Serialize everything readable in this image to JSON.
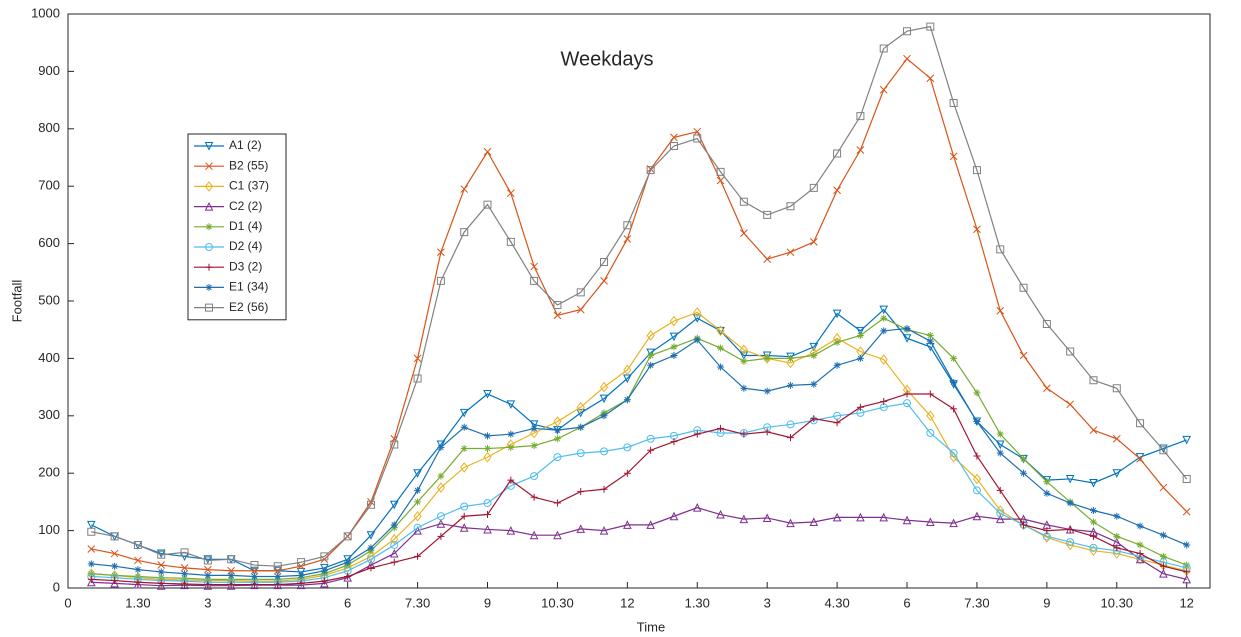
{
  "chart_data": {
    "type": "line",
    "title": "Weekdays",
    "x_label": "Time",
    "y_label": "Footfall",
    "x": [
      0.5,
      1,
      1.5,
      2,
      2.5,
      3,
      3.5,
      4,
      4.5,
      5,
      5.5,
      6,
      6.5,
      7,
      7.5,
      8,
      8.5,
      9,
      9.5,
      10,
      10.5,
      11,
      11.5,
      12,
      12.5,
      13,
      13.5,
      14,
      14.5,
      15,
      15.5,
      16,
      16.5,
      17,
      17.5,
      18,
      18.5,
      19,
      19.5,
      20,
      20.5,
      21,
      21.5,
      22,
      22.5,
      23,
      23.5,
      24
    ],
    "xlim": [
      0,
      24.5
    ],
    "ylim": [
      0,
      1000
    ],
    "xticks": [
      0,
      {
        "value": 1.5,
        "label": "1.30"
      },
      3,
      {
        "value": 4.5,
        "label": "4.30"
      },
      6,
      {
        "value": 7.5,
        "label": "7.30"
      },
      9,
      {
        "value": 10.5,
        "label": "10.30"
      },
      12,
      {
        "value": 13.5,
        "label": "1.30"
      },
      {
        "value": 15,
        "label": "3"
      },
      {
        "value": 16.5,
        "label": "4.30"
      },
      {
        "value": 18,
        "label": "6"
      },
      {
        "value": 19.5,
        "label": "7.30"
      },
      {
        "value": 21,
        "label": "9"
      },
      {
        "value": 22.5,
        "label": "10.30"
      },
      {
        "value": 24,
        "label": "12"
      }
    ],
    "yticks": [
      0,
      100,
      200,
      300,
      400,
      500,
      600,
      700,
      800,
      900,
      1000
    ],
    "grid": false,
    "legend": "upper left",
    "series": [
      {
        "name": "A1 (2)",
        "color": "#0072bd",
        "marker": "triangle-down",
        "values": [
          110,
          90,
          75,
          60,
          55,
          50,
          50,
          30,
          30,
          28,
          35,
          50,
          92,
          145,
          200,
          250,
          305,
          338,
          320,
          285,
          275,
          305,
          330,
          365,
          410,
          438,
          470,
          448,
          405,
          405,
          403,
          420,
          478,
          448,
          485,
          435,
          420,
          355,
          290,
          250,
          225,
          188,
          190,
          183,
          200,
          228,
          243,
          258
        ]
      },
      {
        "name": "B2 (55)",
        "color": "#d95319",
        "marker": "x",
        "values": [
          68,
          60,
          48,
          40,
          35,
          32,
          30,
          30,
          30,
          38,
          50,
          90,
          150,
          260,
          400,
          585,
          695,
          760,
          688,
          560,
          475,
          485,
          535,
          608,
          730,
          785,
          795,
          710,
          618,
          573,
          585,
          603,
          693,
          763,
          868,
          922,
          888,
          752,
          625,
          483,
          405,
          348,
          320,
          275,
          260,
          225,
          175,
          133
        ]
      },
      {
        "name": "C1 (37)",
        "color": "#edb120",
        "marker": "diamond",
        "values": [
          25,
          22,
          18,
          15,
          14,
          13,
          13,
          12,
          12,
          15,
          22,
          35,
          55,
          85,
          125,
          175,
          210,
          228,
          250,
          270,
          290,
          315,
          350,
          380,
          440,
          465,
          480,
          448,
          415,
          400,
          392,
          410,
          435,
          412,
          398,
          345,
          300,
          228,
          190,
          135,
          110,
          88,
          75,
          65,
          60,
          50,
          40,
          30
        ]
      },
      {
        "name": "C2 (2)",
        "color": "#7e2f8e",
        "marker": "triangle-up",
        "values": [
          10,
          8,
          6,
          4,
          5,
          4,
          4,
          5,
          5,
          5,
          8,
          18,
          40,
          60,
          100,
          112,
          105,
          102,
          100,
          92,
          92,
          103,
          100,
          110,
          110,
          125,
          140,
          128,
          120,
          122,
          113,
          115,
          123,
          123,
          123,
          118,
          115,
          113,
          125,
          120,
          120,
          110,
          102,
          98,
          80,
          50,
          25,
          15
        ]
      },
      {
        "name": "D1 (4)",
        "color": "#77ac30",
        "marker": "star",
        "values": [
          25,
          22,
          20,
          18,
          17,
          15,
          15,
          15,
          15,
          18,
          25,
          40,
          65,
          105,
          150,
          195,
          243,
          243,
          245,
          248,
          260,
          280,
          305,
          328,
          405,
          420,
          435,
          418,
          395,
          400,
          400,
          405,
          428,
          440,
          470,
          450,
          440,
          400,
          340,
          268,
          225,
          185,
          150,
          115,
          90,
          75,
          55,
          40
        ]
      },
      {
        "name": "D2 (4)",
        "color": "#4dbeee",
        "marker": "circle",
        "values": [
          20,
          18,
          15,
          13,
          12,
          10,
          10,
          10,
          10,
          12,
          18,
          30,
          50,
          75,
          105,
          125,
          142,
          148,
          178,
          195,
          228,
          235,
          238,
          245,
          260,
          265,
          275,
          270,
          270,
          280,
          285,
          292,
          300,
          305,
          315,
          322,
          270,
          235,
          170,
          130,
          110,
          90,
          80,
          70,
          65,
          55,
          45,
          35
        ]
      },
      {
        "name": "D3 (2)",
        "color": "#a2142f",
        "marker": "plus",
        "values": [
          15,
          13,
          10,
          8,
          7,
          6,
          6,
          6,
          6,
          8,
          12,
          20,
          35,
          45,
          55,
          90,
          125,
          128,
          188,
          158,
          148,
          168,
          172,
          200,
          240,
          255,
          268,
          278,
          268,
          272,
          262,
          295,
          288,
          315,
          325,
          338,
          338,
          312,
          230,
          170,
          110,
          100,
          102,
          90,
          70,
          60,
          38,
          28
        ]
      },
      {
        "name": "E1 (34)",
        "color": "#1f6fb0",
        "marker": "star",
        "values": [
          42,
          38,
          32,
          28,
          25,
          22,
          22,
          20,
          20,
          22,
          30,
          45,
          70,
          110,
          170,
          245,
          280,
          265,
          268,
          278,
          275,
          280,
          300,
          328,
          388,
          405,
          432,
          385,
          348,
          343,
          353,
          355,
          388,
          400,
          448,
          452,
          430,
          358,
          290,
          235,
          200,
          165,
          148,
          135,
          125,
          108,
          92,
          75
        ]
      },
      {
        "name": "E2 (56)",
        "color": "#808080",
        "marker": "square",
        "values": [
          98,
          90,
          75,
          58,
          62,
          48,
          50,
          40,
          38,
          45,
          55,
          90,
          145,
          250,
          365,
          535,
          620,
          668,
          603,
          535,
          493,
          515,
          568,
          632,
          728,
          770,
          783,
          725,
          673,
          650,
          665,
          697,
          757,
          822,
          940,
          970,
          978,
          845,
          728,
          590,
          523,
          460,
          412,
          362,
          348,
          287,
          240,
          190
        ]
      }
    ]
  }
}
